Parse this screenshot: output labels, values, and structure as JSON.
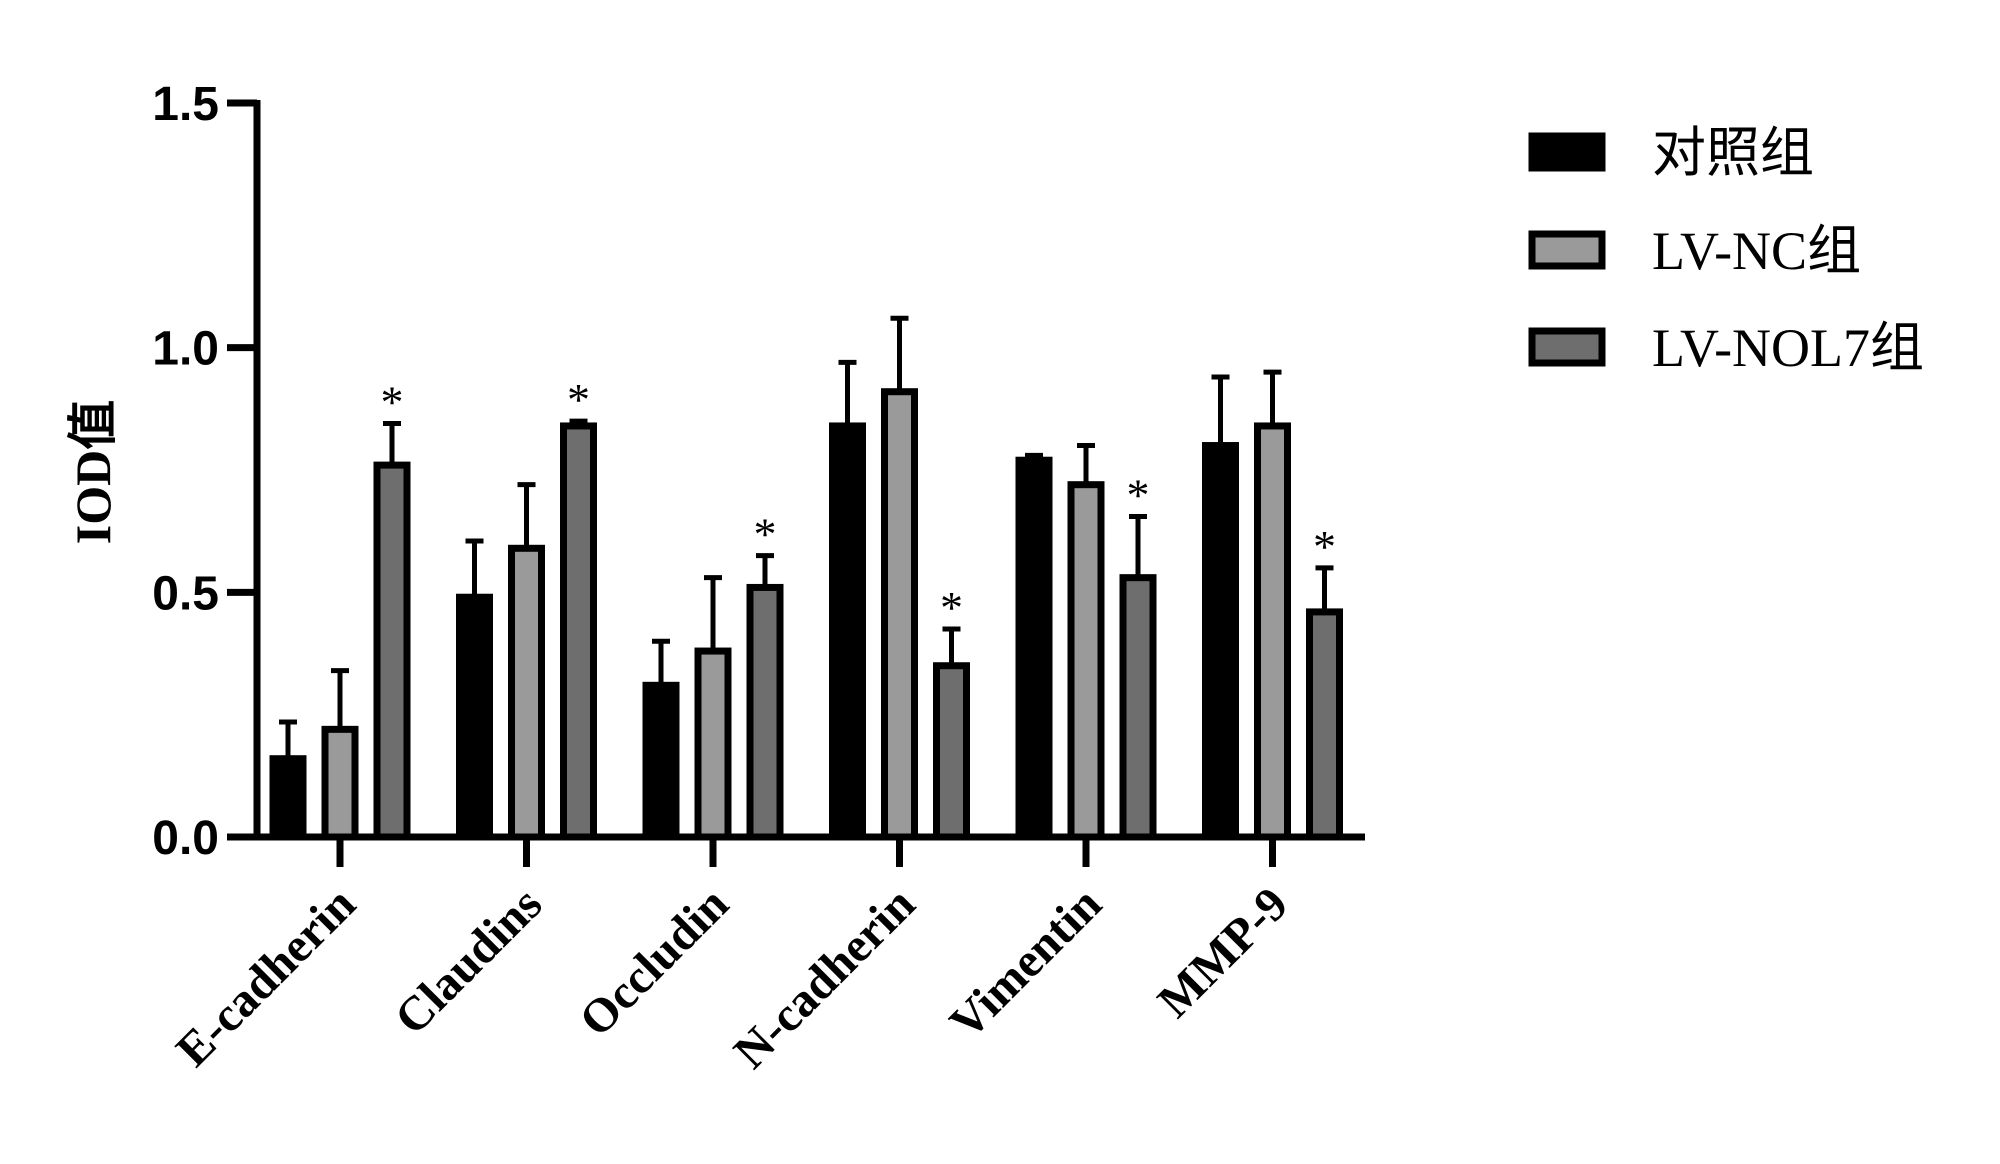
{
  "chart_data": {
    "type": "bar",
    "title": "",
    "xlabel": "",
    "ylabel": "IOD值",
    "ylim": [
      0,
      1.5
    ],
    "yticks": [
      "0.0",
      "0.5",
      "1.0",
      "1.5"
    ],
    "grid": false,
    "legend_position": "right",
    "categories": [
      "E-cadherin",
      "Claudins",
      "Occludin",
      "N-cadherin",
      "Vimentin",
      "MMP-9"
    ],
    "series": [
      {
        "name": "对照组",
        "color": "#000000",
        "values": [
          0.16,
          0.49,
          0.31,
          0.84,
          0.77,
          0.8
        ],
        "errors": [
          0.075,
          0.115,
          0.09,
          0.13,
          0.01,
          0.14
        ]
      },
      {
        "name": "LV-NC组",
        "color": "#9a9a9a",
        "values": [
          0.22,
          0.59,
          0.38,
          0.91,
          0.72,
          0.84
        ],
        "errors": [
          0.12,
          0.13,
          0.15,
          0.15,
          0.08,
          0.11
        ]
      },
      {
        "name": "LV-NOL7组",
        "color": "#6e6e6e",
        "values": [
          0.76,
          0.84,
          0.51,
          0.35,
          0.53,
          0.46
        ],
        "errors": [
          0.085,
          0.01,
          0.065,
          0.075,
          0.125,
          0.09
        ]
      }
    ],
    "annotations": {
      "text": "*",
      "series_index": 2
    }
  }
}
